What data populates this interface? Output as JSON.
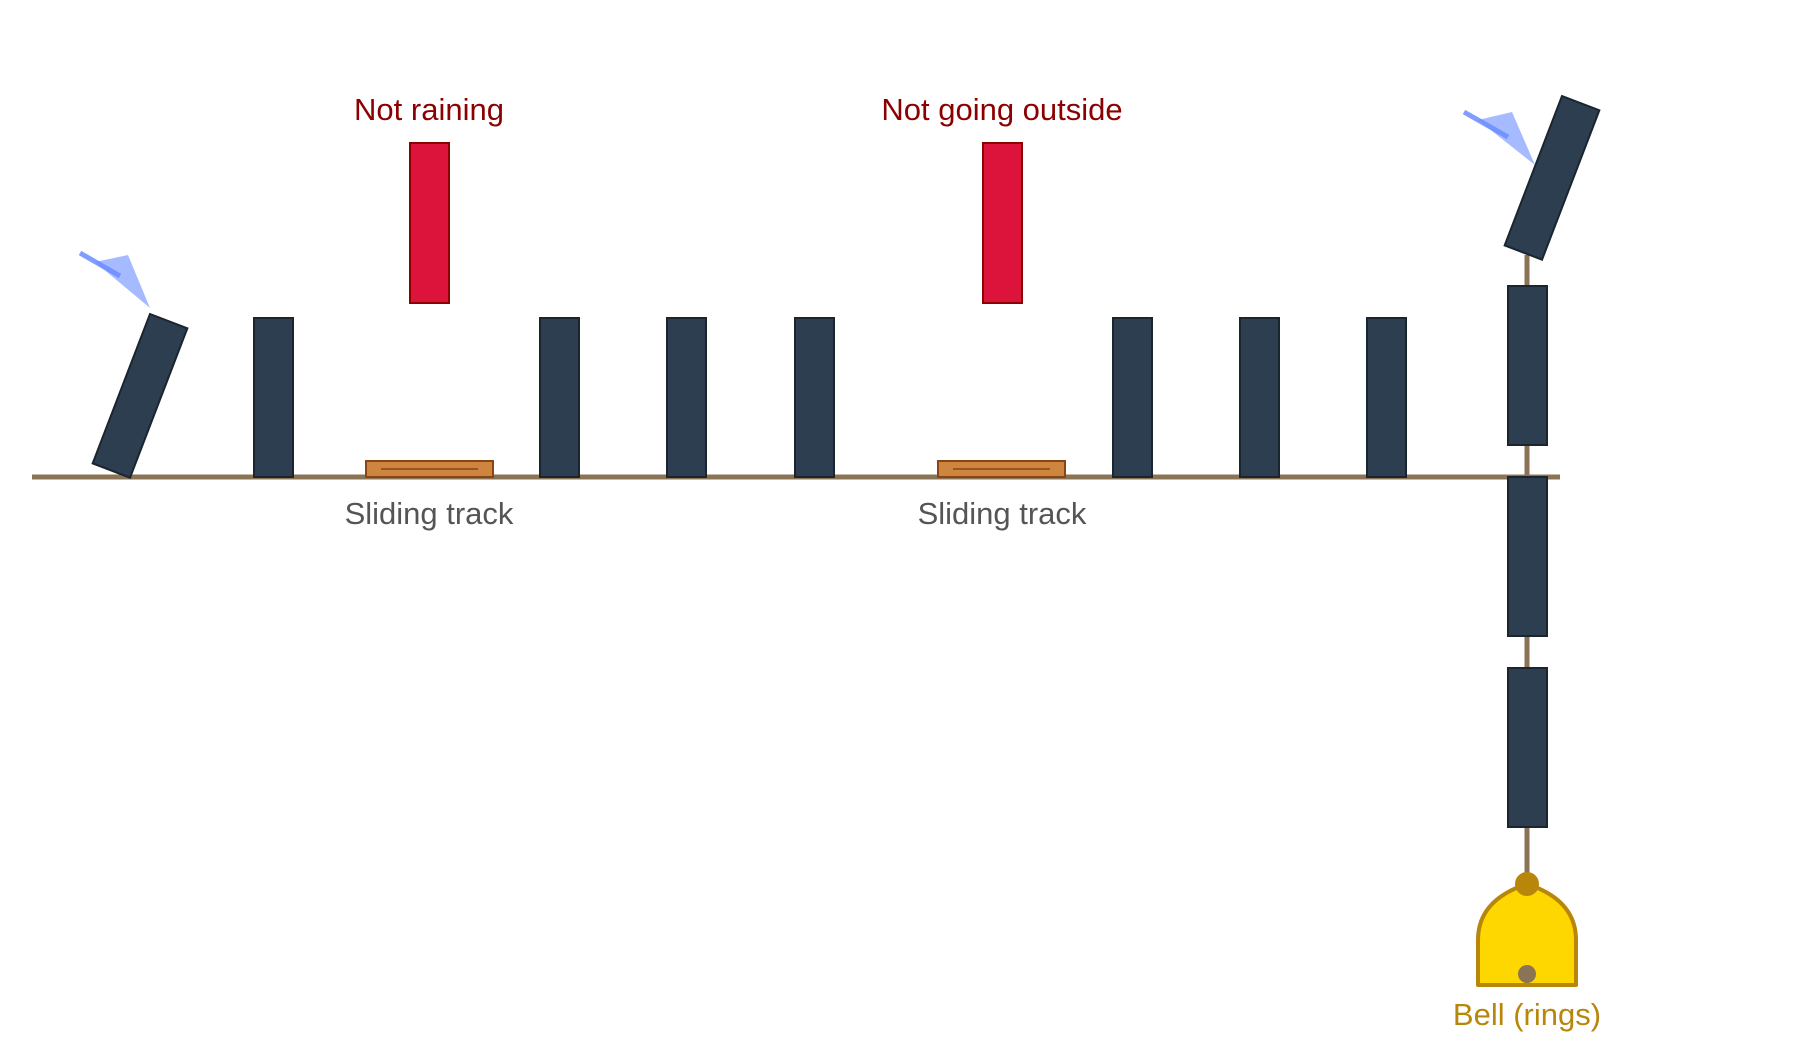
{
  "diagram": {
    "labels": {
      "blocker_1": "Not raining",
      "blocker_2": "Not going outside",
      "track_1": "Sliding track",
      "track_2": "Sliding track",
      "bell": "Bell (rings)"
    },
    "colors": {
      "domino": "#2c3e50",
      "blocker": "#dc143c",
      "blocker_label": "#8b0000",
      "track": "#cd853f",
      "ground_line": "#8b7355",
      "bell": "#ffd700",
      "bell_outline": "#b8860b",
      "push_arrow": "#6a8cff"
    }
  }
}
